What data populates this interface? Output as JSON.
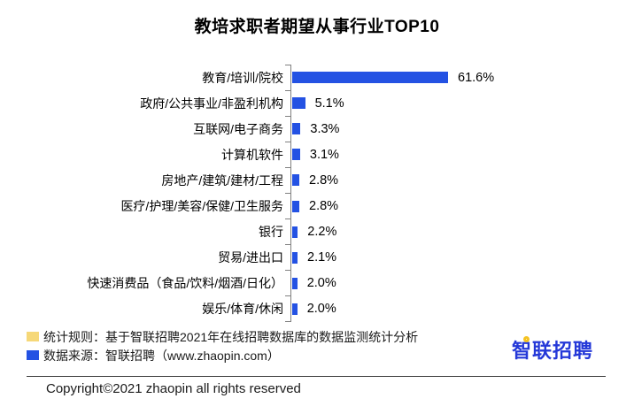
{
  "title": "教培求职者期望从事行业TOP10",
  "chart_data": {
    "type": "bar",
    "orientation": "horizontal",
    "title": "教培求职者期望从事行业TOP10",
    "categories": [
      "教育/培训/院校",
      "政府/公共事业/非盈利机构",
      "互联网/电子商务",
      "计算机软件",
      "房地产/建筑/建材/工程",
      "医疗/护理/美容/保健/卫生服务",
      "银行",
      "贸易/进出口",
      "快速消费品（食品/饮料/烟酒/日化）",
      "娱乐/体育/休闲"
    ],
    "values": [
      61.6,
      5.1,
      3.3,
      3.1,
      2.8,
      2.8,
      2.2,
      2.1,
      2.0,
      2.0
    ],
    "value_labels": [
      "61.6%",
      "5.1%",
      "3.3%",
      "3.1%",
      "2.8%",
      "2.8%",
      "2.2%",
      "2.1%",
      "2.0%",
      "2.0%"
    ],
    "xlabel": "",
    "ylabel": "",
    "xlim": [
      0,
      70
    ],
    "grid": false,
    "legend": "none",
    "bar_color": "#2452e3",
    "axis_color": "#808080"
  },
  "footer": {
    "notes": [
      {
        "marker": "yellow-square",
        "marker_color": "#f6d878",
        "text": "统计规则：基于智联招聘2021年在线招聘数据库的数据监测统计分析"
      },
      {
        "marker": "blue-square",
        "marker_color": "#2452e3",
        "text": "数据来源：智联招聘（www.zhaopin.com）"
      }
    ],
    "logo_text": "智联招聘",
    "logo_color": "#2438d8",
    "logo_accent_color": "#f5c321",
    "copyright": "Copyright©2021 zhaopin all rights reserved"
  }
}
